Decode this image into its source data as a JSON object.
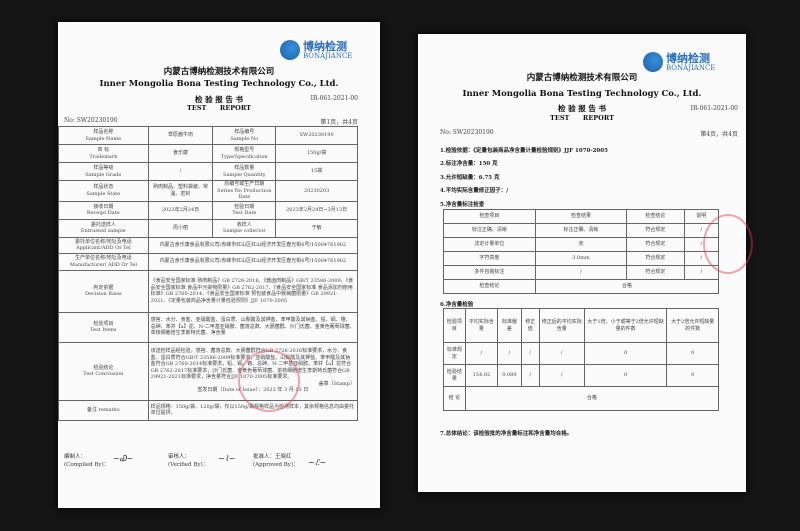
{
  "logo": {
    "cn": "博纳检测",
    "en": "BONAJIANCE"
  },
  "header": {
    "company_cn": "内蒙古博纳检测技术有限公司",
    "company_en": "Inner Mongolia Bona Testing Technology Co., Ltd.",
    "title_cn": "检 验 报 告 书",
    "title_en": "TEST      REPORT",
    "form_no": "IR-061-2021-00",
    "report_no": "No: SW20230190"
  },
  "page1": {
    "page_info": "第1页，共4页",
    "rows": [
      {
        "k1": "样品名称",
        "k1en": "Sample Name",
        "v1": "草原酱牛肉",
        "k2": "样品编号",
        "k2en": "Sample No",
        "v2": "SW20230190"
      },
      {
        "k1": "商 标",
        "k1en": "Trademark",
        "v1": "食乐康",
        "k2": "规格型号",
        "k2en": "Type/Specification",
        "v2": "150g/袋"
      },
      {
        "k1": "样品等级",
        "k1en": "Sample Grade",
        "v1": "/",
        "k2": "样品数量",
        "k2en": "Sample Quantity",
        "v2": "15袋"
      },
      {
        "k1": "样品状态",
        "k1en": "Sample State",
        "v1": "熟肉制品、塑料袋装、常温、密封",
        "k2": "原编号或生产日期",
        "k2en": "Series No Production Date",
        "v2": "20230203"
      },
      {
        "k1": "接收日期",
        "k1en": "Receipt Date",
        "v1": "2023年2月24日",
        "k2": "检验日期",
        "k2en": "Test Date",
        "v2": "2023年2月24日~3月13日"
      },
      {
        "k1": "委托送样人",
        "k1en": "Entrusted sample",
        "v1": "周小丽",
        "k2": "收样人",
        "k2en": "Sample collector",
        "v2": "于敏"
      }
    ],
    "applicant": {
      "k": "委托单位名称/地址及电话",
      "ken": "Applicant/ADD Or Tel",
      "v": "内蒙古食乐康食品有限公司/赤峰市红山区红山经济开发区春光街6号/15004761902"
    },
    "manufacturer": {
      "k": "生产单位名称/地址及电话",
      "ken": "Manufacturer/ ADD Or Tel",
      "v": "内蒙古食乐康食品有限公司/赤峰市红山区红山经济开发区春光街6号/15004761902"
    },
    "decision": {
      "k": "判定依据",
      "ken": "Decision Basis",
      "v": "《食品安全国家标准 熟肉制品》GB 2726-2016、《酱卤肉制品》GB/T 23586-2009、《食品安全国家标准 食品中污染物限量》GB 2762-2017、《食品安全国家标准 食品添加剂使用标准》GB 2760-2014、《食品安全国家标准 预包装食品中致病菌限量》GB 29921-2021、《定量包装商品净含量计量检验规则》JJF 1070-2005"
    },
    "items": {
      "k": "检验项目",
      "ken": "Test Items",
      "v": "感官、水分、食盐、亚硝酸盐、蛋白质、山梨酸及其钾盐、苯甲酸及其钠盐、铅、镉、铬、总砷、苯并【a】芘、N-二甲基亚硝胺、菌落总数、大肠菌群、沙门氏菌、金黄色葡萄球菌、单核细胞增生李斯特氏菌、净含量"
    },
    "conclusion": {
      "k": "检验结论",
      "ken": "Test Conclusion",
      "v": "该送检样品经检验，感官、菌落总数、大肠菌群符合GB 2726-2016标准要求，水分、食盐、蛋白质符合GB/T 23586-2009标准要求，亚硝酸盐、山梨酸及其钾盐、苯甲酸及其钠盐符合GB 2760-2014标准要求，铅、镉、铬、总砷、N-二甲基亚硝胺、苯并【a】芘符合GB 2762-2017标准要求，沙门氏菌、金黄色葡萄球菌、单核细胞增生李斯特氏菌符合GB 29921-2021标准要求，净含量符合JJF 1070-2005标准要求。",
      "stamp": "盖章（Stamp）",
      "date": "签发日期（Date of Issue）：2023 年 3 月 13 日"
    },
    "remarks": {
      "k": "备注 remarks",
      "v": "样品规格：150g/袋、120g/袋，仅以150g/袋规格样品为检测样本，其余规格信息均由委托单位提供。"
    },
    "signatures": {
      "compiled": "编制人：",
      "compiled_en": "(Compiled By)：",
      "verified": "审核人：",
      "verified_en": "(Verified By)：",
      "approved": "批准人：王晓红",
      "approved_en": "(Approved By)："
    }
  },
  "page2": {
    "page_info": "第4页，共4页",
    "lines": [
      "1.检验依据：《定量包装商品净含量计量检验规则》JJF 1070-2005",
      "2.标注净含量：150 克",
      "3.允许短缺量：6.75 克",
      "4.平均实际含量修正因子：/",
      "5.净含量标注检查"
    ],
    "t5": {
      "headers": [
        "检查项目",
        "检查结果",
        "检查结论",
        "说明"
      ],
      "rows": [
        [
          "标注正确、清晰",
          "标注正确、清晰",
          "符合规定",
          "/"
        ],
        [
          "法定计量单位",
          "克",
          "符合规定",
          "/"
        ],
        [
          "字符高度",
          "3.0mm",
          "符合规定",
          "/"
        ],
        [
          "多件包装标注",
          "/",
          "符合规定",
          "/"
        ]
      ],
      "summary": [
        "检查结论",
        "合格"
      ]
    },
    "sec6": "6.净含量检验",
    "t6": {
      "headers": [
        "检验项目",
        "平均实际含量",
        "标准偏差",
        "修正值",
        "修正后的平均实际含量",
        "大于1倍，小于或等于2倍允许短缺量的件数",
        "大于2倍允许短缺量的件数"
      ],
      "rows": [
        [
          "标准规定",
          "/",
          "/",
          "/",
          "/",
          "0",
          "0"
        ],
        [
          "检验结果",
          "154.02",
          "0.089",
          "/",
          "/",
          "0",
          "0"
        ]
      ],
      "summary": [
        "结 论",
        "合格"
      ]
    },
    "sec7": "7.总体结论：该检验批的净含量标注和净含量均合格。"
  }
}
